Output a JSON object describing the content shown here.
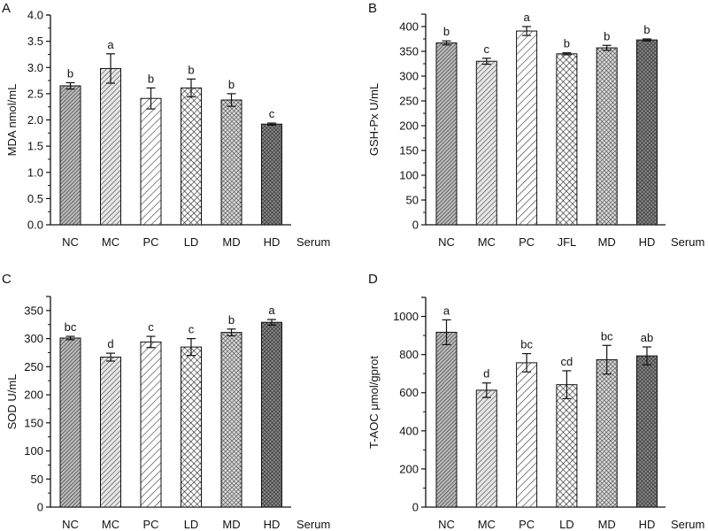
{
  "figure": {
    "description": "Four-panel bar chart of serum oxidative stress markers",
    "pattern_colors": {
      "stroke": "#222222",
      "bar_outline": "#111111",
      "axis": "#111111"
    }
  },
  "chart_data": [
    {
      "panel_label": "A",
      "type": "bar",
      "title": "",
      "xlabel": "Serum",
      "ylabel": "MDA nmol/mL",
      "categories": [
        "NC",
        "MC",
        "PC",
        "LD",
        "MD",
        "HD"
      ],
      "values": [
        2.65,
        2.98,
        2.41,
        2.61,
        2.38,
        1.92
      ],
      "errors": [
        0.06,
        0.28,
        0.2,
        0.17,
        0.12,
        0.02
      ],
      "significance_letters": [
        "b",
        "a",
        "b",
        "b",
        "b",
        "c"
      ],
      "ylim": [
        0,
        4.0
      ],
      "yticks": [
        0.0,
        0.5,
        1.0,
        1.5,
        2.0,
        2.5,
        3.0,
        3.5,
        4.0
      ],
      "ytick_labels": [
        "0.0",
        "0.5",
        "1.0",
        "1.5",
        "2.0",
        "2.5",
        "3.0",
        "3.5",
        "4.0"
      ],
      "grid": false
    },
    {
      "panel_label": "B",
      "type": "bar",
      "title": "",
      "xlabel": "Serum",
      "ylabel": "GSH-Px U/mL",
      "categories": [
        "NC",
        "MC",
        "PC",
        "JFL",
        "MD",
        "HD"
      ],
      "values": [
        367,
        330,
        391,
        345,
        357,
        373
      ],
      "errors": [
        4,
        6,
        9,
        2,
        5,
        2
      ],
      "significance_letters": [
        "b",
        "c",
        "a",
        "b",
        "b",
        "b"
      ],
      "ylim": [
        0,
        425
      ],
      "yticks": [
        0,
        50,
        100,
        150,
        200,
        250,
        300,
        350,
        400
      ],
      "ytick_labels": [
        "0",
        "50",
        "100",
        "150",
        "200",
        "250",
        "300",
        "350",
        "400"
      ],
      "grid": false
    },
    {
      "panel_label": "C",
      "type": "bar",
      "title": "",
      "xlabel": "Serum",
      "ylabel": "SOD U/mL",
      "categories": [
        "NC",
        "MC",
        "PC",
        "LD",
        "MD",
        "HD"
      ],
      "values": [
        301,
        267,
        294,
        285,
        311,
        329
      ],
      "errors": [
        3,
        7,
        10,
        15,
        6,
        5
      ],
      "significance_letters": [
        "bc",
        "d",
        "c",
        "c",
        "b",
        "a"
      ],
      "ylim": [
        0,
        375
      ],
      "yticks": [
        0,
        50,
        100,
        150,
        200,
        250,
        300,
        350
      ],
      "ytick_labels": [
        "0",
        "50",
        "100",
        "150",
        "200",
        "250",
        "300",
        "350"
      ],
      "grid": false
    },
    {
      "panel_label": "D",
      "type": "bar",
      "title": "",
      "xlabel": "Serum",
      "ylabel": "T-AOC μmol/gprot",
      "categories": [
        "NC",
        "MC",
        "PC",
        "LD",
        "MD",
        "HD"
      ],
      "values": [
        917,
        613,
        757,
        642,
        773,
        793
      ],
      "errors": [
        65,
        38,
        48,
        73,
        75,
        47
      ],
      "significance_letters": [
        "a",
        "d",
        "bc",
        "cd",
        "bc",
        "ab"
      ],
      "ylim": [
        0,
        1100
      ],
      "yticks": [
        0,
        200,
        400,
        600,
        800,
        1000
      ],
      "ytick_labels": [
        "0",
        "200",
        "400",
        "600",
        "800",
        "1000"
      ],
      "grid": false
    }
  ]
}
